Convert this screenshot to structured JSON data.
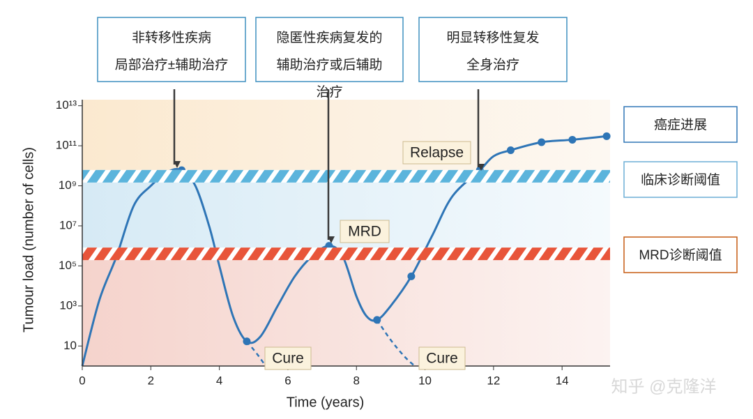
{
  "chart_data": {
    "type": "line",
    "xlabel": "Time (years)",
    "ylabel": "Tumour load (number of cells)",
    "xlim": [
      0,
      15.4
    ],
    "xticks": [
      0,
      2,
      4,
      6,
      8,
      10,
      12,
      14
    ],
    "ylim": [
      1,
      20000000000000
    ],
    "log_y": true,
    "yticks": [
      10,
      {
        "value": 1000,
        "label": "10³"
      },
      {
        "value": 100000,
        "label": "10⁵"
      },
      {
        "value": 10000000,
        "label": "10⁷"
      },
      {
        "value": 1000000000,
        "label": "10⁹"
      },
      {
        "value": 100000000000,
        "label": "10¹¹"
      },
      {
        "value": 10000000000000,
        "label": "10¹³"
      }
    ],
    "series": [
      {
        "color": "#2e75b6",
        "x": [
          0,
          0.5,
          1.0,
          1.5,
          2.0,
          2.5,
          2.9,
          3.3,
          3.7,
          4.0,
          4.4,
          4.8,
          5.2,
          5.7,
          6.2,
          6.7,
          7.2,
          7.6,
          8.0,
          8.3,
          8.6,
          9.0,
          9.6,
          10.2,
          10.8,
          11.6,
          12.0,
          12.5,
          13.4,
          14.3,
          15.3
        ],
        "values": [
          1,
          2000,
          300000,
          100000000,
          1000000000,
          5000000000,
          6000000000,
          1000000000,
          10000000,
          100000,
          300,
          17,
          30,
          1000,
          30000,
          300000,
          1000000,
          300000,
          3000,
          300,
          200,
          1000,
          30000,
          3000000,
          300000000,
          6000000000,
          30000000000,
          60000000000,
          150000000000,
          200000000000,
          300000000000
        ]
      },
      {
        "color": "#2e75b6",
        "dashed": true,
        "x": [
          4.8,
          5.1,
          5.35
        ],
        "values": [
          17,
          4,
          1
        ]
      },
      {
        "color": "#2e75b6",
        "dashed": true,
        "x": [
          8.6,
          9.0,
          9.4,
          9.7
        ],
        "values": [
          200,
          20,
          3,
          1
        ]
      },
      {
        "color": "#2e75b6",
        "markers": true,
        "x": [
          1.0,
          2.9,
          4.8,
          7.2,
          8.6,
          9.6,
          11.6,
          12.5,
          13.4,
          14.3,
          15.3
        ],
        "values": [
          300000,
          6000000000,
          17,
          1000000,
          200,
          30000,
          6000000000,
          60000000000,
          150000000000,
          200000000000,
          300000000000
        ]
      }
    ],
    "thresholds": [
      {
        "label": "临床诊断阈值",
        "value": 3000000000,
        "color": "#5bb4dc"
      },
      {
        "label": "MRD诊断阈值",
        "value": 400000,
        "color": "#e8553a"
      }
    ],
    "progression_label": "癌症进展",
    "annotations": [
      "Relapse",
      "MRD",
      "Cure",
      "Cure"
    ],
    "callouts": [
      [
        "非转移性疾病",
        "局部治疗±辅助治疗"
      ],
      [
        "隐匿性疾病复发的",
        "辅助治疗或后辅助",
        "治疗"
      ],
      [
        "明显转移性复发",
        "全身治疗"
      ]
    ],
    "watermark": "知乎 @克隆洋"
  }
}
